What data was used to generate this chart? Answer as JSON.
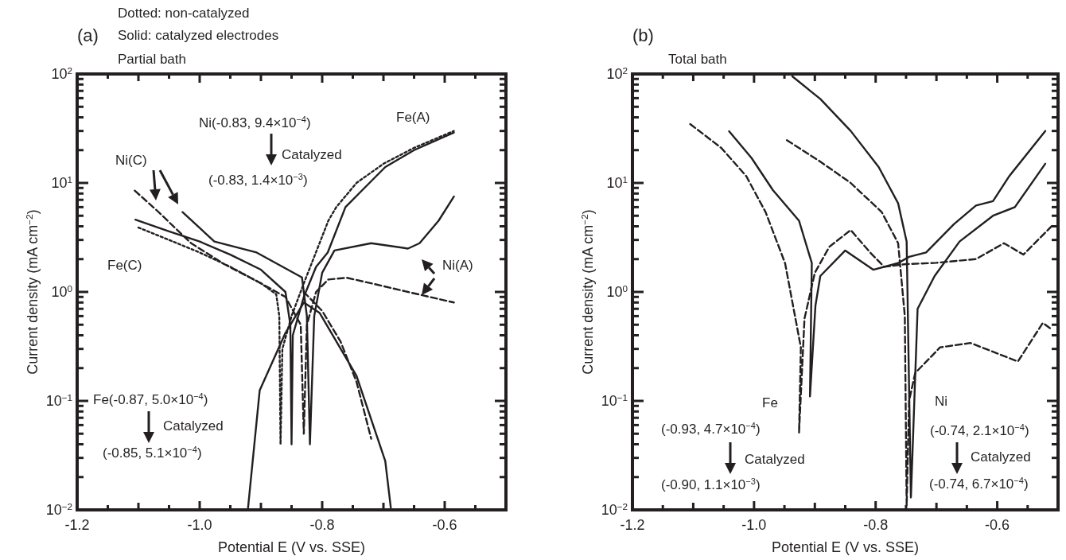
{
  "chart_data": [
    {
      "type": "line",
      "title": "(a)",
      "subtitle": "Partial bath",
      "xlabel": "Potential E (V vs. SSE)",
      "ylabel": "Current density (mA cm$^{−2}$)",
      "log": "y",
      "grid": false,
      "marker": "none",
      "xlim": [
        -1.2,
        -0.5
      ],
      "ylim": [
        0.01,
        100
      ],
      "xticks": [
        {
          "value": -1.2,
          "label": "-1.2"
        },
        {
          "value": -1.15,
          "label": null
        },
        {
          "value": -1.1,
          "label": null
        },
        {
          "value": -1.05,
          "label": null
        },
        {
          "value": -1.0,
          "label": "-1.0"
        },
        {
          "value": -0.95,
          "label": null
        },
        {
          "value": -0.9,
          "label": null
        },
        {
          "value": -0.85,
          "label": null
        },
        {
          "value": -0.8,
          "label": "-0.8"
        },
        {
          "value": -0.75,
          "label": null
        },
        {
          "value": -0.7,
          "label": null
        },
        {
          "value": -0.65,
          "label": null
        },
        {
          "value": -0.6,
          "label": "-0.6"
        },
        {
          "value": -0.55,
          "label": null
        }
      ],
      "yticks": [
        {
          "value": 0.01,
          "label": "10$^{−2}$"
        },
        {
          "value": 0.02,
          "label": null
        },
        {
          "value": 0.03,
          "label": null
        },
        {
          "value": 0.04,
          "label": null
        },
        {
          "value": 0.05,
          "label": null
        },
        {
          "value": 0.06,
          "label": null
        },
        {
          "value": 0.07,
          "label": null
        },
        {
          "value": 0.08,
          "label": null
        },
        {
          "value": 0.09,
          "label": null
        },
        {
          "value": 0.1,
          "label": "10$^{−1}$"
        },
        {
          "value": 0.2,
          "label": null
        },
        {
          "value": 0.3,
          "label": null
        },
        {
          "value": 0.4,
          "label": null
        },
        {
          "value": 0.5,
          "label": null
        },
        {
          "value": 0.6,
          "label": null
        },
        {
          "value": 0.7,
          "label": null
        },
        {
          "value": 0.8,
          "label": null
        },
        {
          "value": 0.9,
          "label": null
        },
        {
          "value": 1,
          "label": "10$^{0}$"
        },
        {
          "value": 2,
          "label": null
        },
        {
          "value": 3,
          "label": null
        },
        {
          "value": 4,
          "label": null
        },
        {
          "value": 5,
          "label": null
        },
        {
          "value": 6,
          "label": null
        },
        {
          "value": 7,
          "label": null
        },
        {
          "value": 8,
          "label": null
        },
        {
          "value": 9,
          "label": null
        },
        {
          "value": 10,
          "label": "10$^{1}$"
        },
        {
          "value": 20,
          "label": null
        },
        {
          "value": 30,
          "label": null
        },
        {
          "value": 40,
          "label": null
        },
        {
          "value": 50,
          "label": null
        },
        {
          "value": 60,
          "label": null
        },
        {
          "value": 70,
          "label": null
        },
        {
          "value": 80,
          "label": null
        },
        {
          "value": 90,
          "label": null
        },
        {
          "value": 100,
          "label": "10$^{2}$"
        }
      ],
      "annotations": [
        "Dotted: non-catalyzed",
        "Solid: catalyzed electrodes",
        "Ni(-0.83, 9.4×10$^{−4}$)",
        "Catalyzed",
        "(-0.83, 1.4×10$^{−3}$)",
        "Fe(A)",
        "Ni(C)",
        "Fe(C)",
        "Ni(A)",
        "Fe(-0.87, 5.0×10$^{−4}$)",
        "Catalyzed",
        "(-0.85, 5.1×10$^{−4}$)"
      ],
      "series": [
        {
          "color": "#231f20",
          "line_style": "dotted",
          "x": [
            -1.1,
            -1.05,
            -1.0,
            -0.95,
            -0.9,
            -0.875,
            -0.87,
            -0.868,
            -0.865,
            -0.85,
            -0.83,
            -0.813,
            -0.79,
            -0.777,
            -0.744,
            -0.7,
            -0.65,
            -0.585
          ],
          "values": [
            3.9,
            3.0,
            2.3,
            1.7,
            1.2,
            0.95,
            0.6,
            0.04,
            0.3,
            0.6,
            1.2,
            2.1,
            4.5,
            6,
            10,
            15,
            21,
            30
          ]
        },
        {
          "color": "#231f20",
          "line_style": "solid",
          "x": [
            -1.105,
            -1.05,
            -1.0,
            -0.95,
            -0.9,
            -0.86,
            -0.852,
            -0.85,
            -0.848,
            -0.83,
            -0.81,
            -0.791,
            -0.762,
            -0.74,
            -0.697,
            -0.65,
            -0.585
          ],
          "values": [
            4.6,
            3.6,
            2.9,
            2.2,
            1.6,
            1.0,
            0.5,
            0.04,
            0.4,
            0.9,
            1.7,
            2.3,
            6,
            8,
            14,
            20,
            29
          ]
        },
        {
          "color": "#231f20",
          "line_style": "dashed",
          "x": [
            -1.106,
            -1.07,
            -1.014,
            -0.96,
            -0.9,
            -0.86,
            -0.835,
            -0.83,
            -0.825,
            -0.81,
            -0.79,
            -0.76,
            -0.72,
            -0.66,
            -0.585
          ],
          "values": [
            8.5,
            5.6,
            2.8,
            1.8,
            1.2,
            0.9,
            0.5,
            0.05,
            0.5,
            1.0,
            1.3,
            1.35,
            1.2,
            1.0,
            0.8
          ]
        },
        {
          "color": "#231f20",
          "line_style": "dashed",
          "x": [
            -0.83,
            -0.8,
            -0.77,
            -0.744,
            -0.72
          ],
          "values": [
            1.0,
            0.67,
            0.35,
            0.15,
            0.045
          ]
        },
        {
          "color": "#231f20",
          "line_style": "solid",
          "x": [
            -1.028,
            -0.976,
            -0.907,
            -0.833,
            -0.825,
            -0.82,
            -0.813,
            -0.8,
            -0.78,
            -0.72,
            -0.66,
            -0.641,
            -0.61,
            -0.585
          ],
          "values": [
            5.4,
            2.9,
            2.3,
            1.36,
            0.6,
            0.04,
            0.6,
            1.5,
            2.4,
            2.8,
            2.5,
            2.8,
            4.5,
            7.5
          ]
        },
        {
          "color": "#231f20",
          "line_style": "solid",
          "x": [
            -0.921,
            -0.902,
            -0.86,
            -0.83,
            -0.804,
            -0.744,
            -0.697,
            -0.688
          ],
          "values": [
            0.0105,
            0.125,
            0.42,
            0.8,
            0.64,
            0.17,
            0.028,
            0.0105
          ]
        }
      ]
    },
    {
      "type": "line",
      "title": "(b)",
      "subtitle": "Total bath",
      "xlabel": "Potential E (V vs. SSE)",
      "ylabel": "Current density (mA cm$^{−2}$)",
      "log": "y",
      "grid": false,
      "marker": "none",
      "xlim": [
        -1.2,
        -0.5
      ],
      "ylim": [
        0.01,
        100
      ],
      "xticks": [
        {
          "value": -1.2,
          "label": "-1.2"
        },
        {
          "value": -1.15,
          "label": null
        },
        {
          "value": -1.1,
          "label": null
        },
        {
          "value": -1.05,
          "label": null
        },
        {
          "value": -1.0,
          "label": "-1.0"
        },
        {
          "value": -0.95,
          "label": null
        },
        {
          "value": -0.9,
          "label": null
        },
        {
          "value": -0.85,
          "label": null
        },
        {
          "value": -0.8,
          "label": "-0.8"
        },
        {
          "value": -0.75,
          "label": null
        },
        {
          "value": -0.7,
          "label": null
        },
        {
          "value": -0.65,
          "label": null
        },
        {
          "value": -0.6,
          "label": "-0.6"
        },
        {
          "value": -0.55,
          "label": null
        }
      ],
      "yticks": [
        {
          "value": 0.01,
          "label": "10$^{−2}$"
        },
        {
          "value": 0.02,
          "label": null
        },
        {
          "value": 0.03,
          "label": null
        },
        {
          "value": 0.04,
          "label": null
        },
        {
          "value": 0.05,
          "label": null
        },
        {
          "value": 0.06,
          "label": null
        },
        {
          "value": 0.07,
          "label": null
        },
        {
          "value": 0.08,
          "label": null
        },
        {
          "value": 0.09,
          "label": null
        },
        {
          "value": 0.1,
          "label": "10$^{−1}$"
        },
        {
          "value": 0.2,
          "label": null
        },
        {
          "value": 0.3,
          "label": null
        },
        {
          "value": 0.4,
          "label": null
        },
        {
          "value": 0.5,
          "label": null
        },
        {
          "value": 0.6,
          "label": null
        },
        {
          "value": 0.7,
          "label": null
        },
        {
          "value": 0.8,
          "label": null
        },
        {
          "value": 0.9,
          "label": null
        },
        {
          "value": 1,
          "label": "10$^{0}$"
        },
        {
          "value": 2,
          "label": null
        },
        {
          "value": 3,
          "label": null
        },
        {
          "value": 4,
          "label": null
        },
        {
          "value": 5,
          "label": null
        },
        {
          "value": 6,
          "label": null
        },
        {
          "value": 7,
          "label": null
        },
        {
          "value": 8,
          "label": null
        },
        {
          "value": 9,
          "label": null
        },
        {
          "value": 10,
          "label": "10$^{1}$"
        },
        {
          "value": 20,
          "label": null
        },
        {
          "value": 30,
          "label": null
        },
        {
          "value": 40,
          "label": null
        },
        {
          "value": 50,
          "label": null
        },
        {
          "value": 60,
          "label": null
        },
        {
          "value": 70,
          "label": null
        },
        {
          "value": 80,
          "label": null
        },
        {
          "value": 90,
          "label": null
        },
        {
          "value": 100,
          "label": "10$^{2}$"
        }
      ],
      "annotations": [
        "Fe",
        "(-0.93, 4.7×10$^{−4}$)",
        "Catalyzed",
        "(-0.90, 1.1×10$^{−3}$)",
        "Ni",
        "(-0.74, 2.1×10$^{−4}$)",
        "Catalyzed",
        "(-0.74, 6.7×10$^{−4}$)"
      ],
      "series": [
        {
          "color": "#231f20",
          "line_style": "dashed",
          "x": [
            -1.105,
            -1.054,
            -1.013,
            -0.981,
            -0.949,
            -0.923,
            -0.926,
            -0.917,
            -0.9,
            -0.876,
            -0.841,
            -0.809,
            -0.786,
            -0.75,
            -0.7,
            -0.635,
            -0.589,
            -0.557,
            -0.507
          ],
          "values": [
            34.7,
            21,
            11.6,
            5.4,
            1.84,
            0.31,
            0.051,
            0.57,
            1.5,
            2.6,
            3.7,
            2.3,
            1.7,
            1.8,
            1.85,
            2.0,
            2.8,
            2.2,
            4.2
          ]
        },
        {
          "color": "#231f20",
          "line_style": "solid",
          "x": [
            -1.041,
            -1.004,
            -0.969,
            -0.926,
            -0.905,
            -0.908,
            -0.899,
            -0.891,
            -0.85,
            -0.804,
            -0.763,
            -0.745,
            -0.717,
            -0.671,
            -0.635,
            -0.607,
            -0.58,
            -0.521
          ],
          "values": [
            29.8,
            16.9,
            8.6,
            4.5,
            1.84,
            0.11,
            0.75,
            1.4,
            2.4,
            1.6,
            1.84,
            2.1,
            2.3,
            4.2,
            6.2,
            6.8,
            11.6,
            30
          ]
        },
        {
          "color": "#231f20",
          "line_style": "dashed",
          "x": [
            -0.946,
            -0.891,
            -0.841,
            -0.79,
            -0.763,
            -0.752,
            -0.749,
            -0.745,
            -0.735,
            -0.694,
            -0.644,
            -0.566,
            -0.525,
            -0.51
          ],
          "values": [
            24.7,
            15.7,
            10,
            5.4,
            2.8,
            0.6,
            0.011,
            0.1,
            0.18,
            0.31,
            0.34,
            0.23,
            0.52,
            0.45
          ]
        },
        {
          "color": "#231f20",
          "line_style": "solid",
          "x": [
            -0.937,
            -0.891,
            -0.841,
            -0.795,
            -0.763,
            -0.749,
            -0.742,
            -0.731,
            -0.703,
            -0.662,
            -0.607,
            -0.571,
            -0.521
          ],
          "values": [
            95,
            59,
            30,
            14,
            6.5,
            2.9,
            0.013,
            0.7,
            1.4,
            2.9,
            5.0,
            6.0,
            15
          ]
        }
      ]
    }
  ]
}
